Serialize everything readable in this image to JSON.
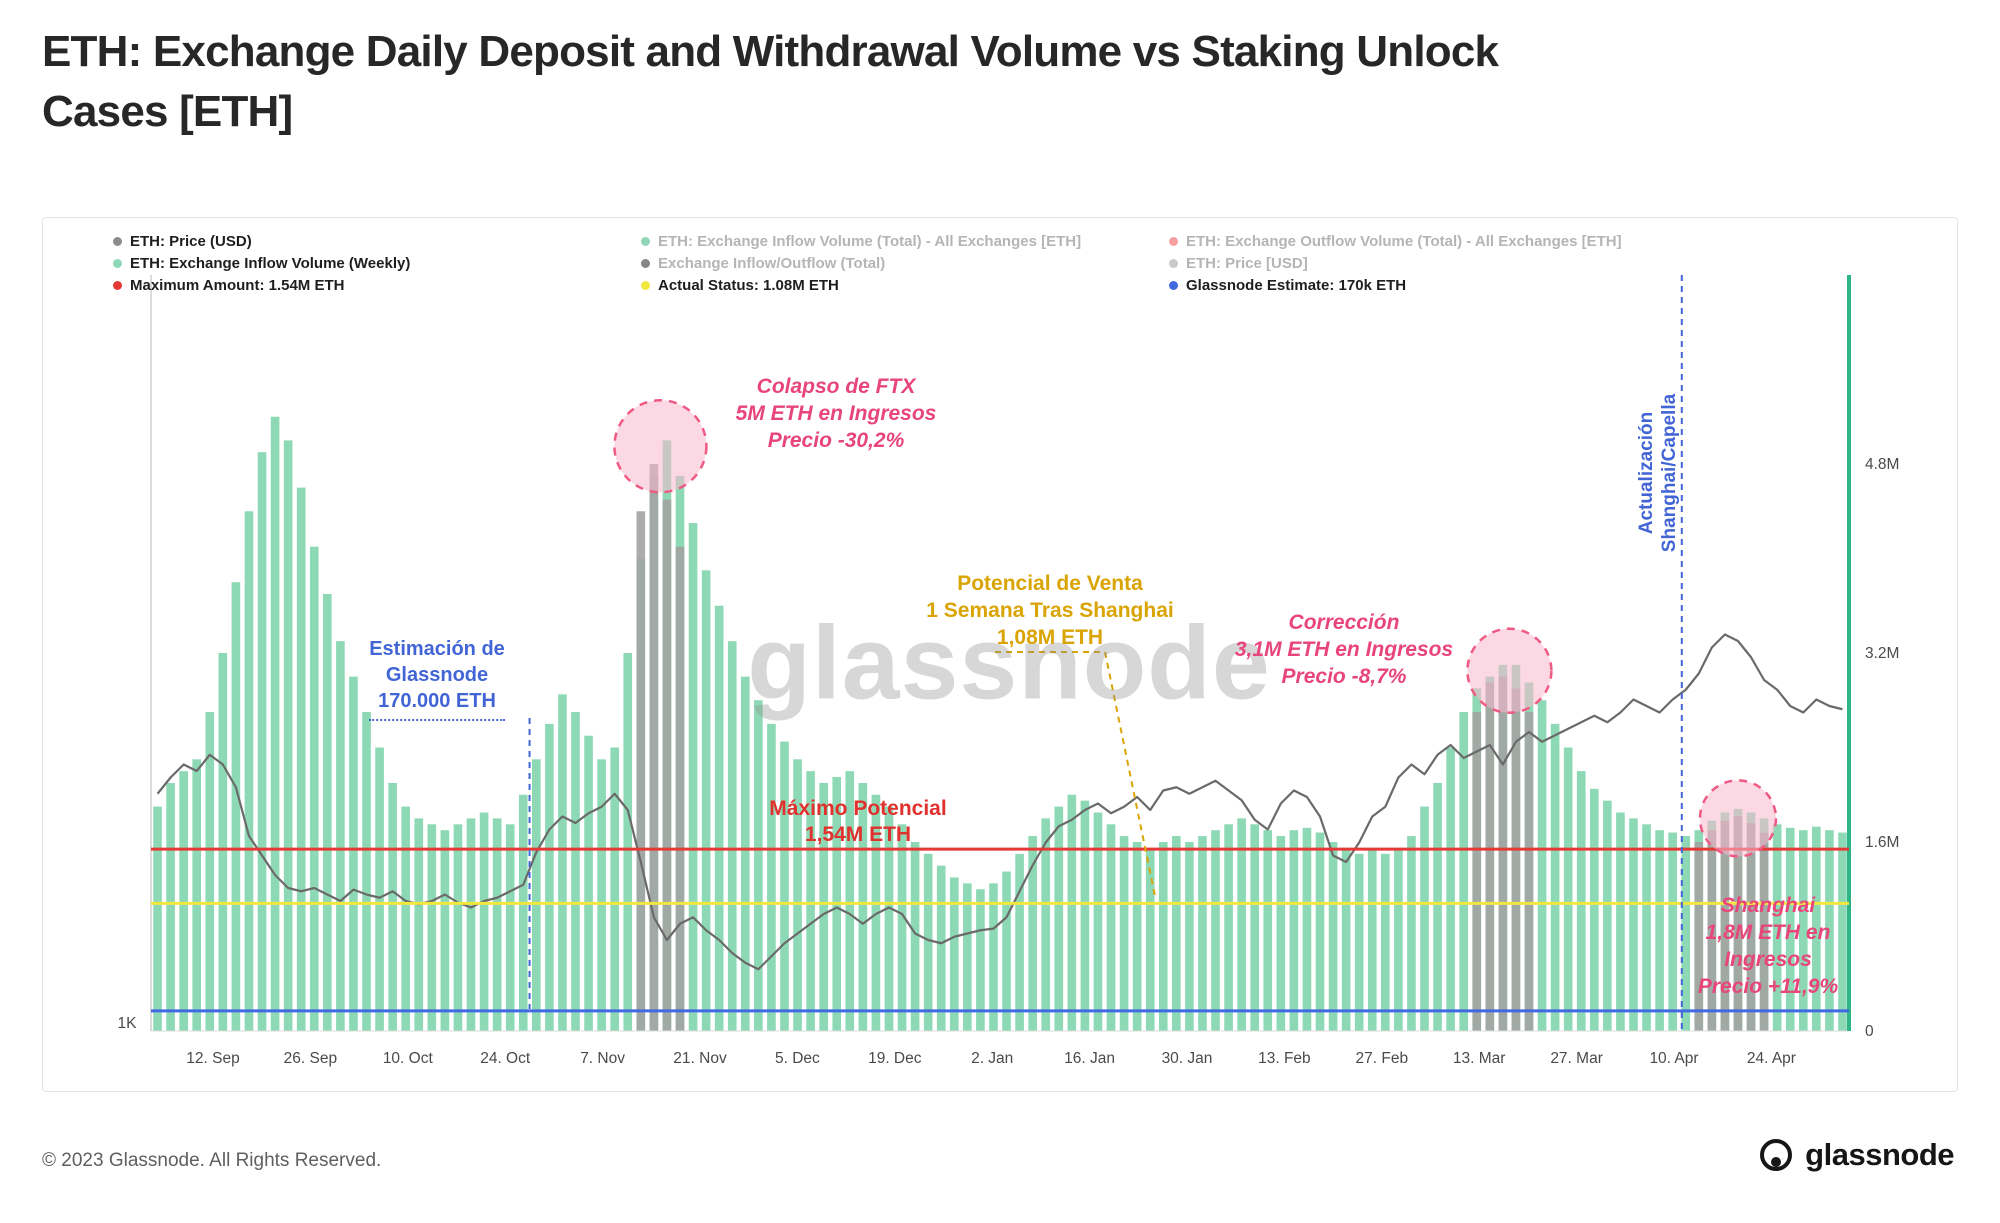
{
  "header": {
    "title_line1": "ETH: Exchange Daily Deposit and Withdrawal Volume vs Staking Unlock",
    "title_line2": "Cases [ETH]"
  },
  "watermark": "glassnode",
  "footer": {
    "copyright": "© 2023 Glassnode. All Rights Reserved.",
    "brand": "glassnode"
  },
  "colors": {
    "bar_green": "#8ed9b5",
    "bar_gray": "#a3a3a3",
    "price_gray": "#6a6a6a",
    "red_line": "#e53935",
    "yellow_line": "#f2e73e",
    "blue_line": "#4169e1",
    "teal_axis": "#2db487",
    "circle_fill": "#f7b8cd",
    "circle_stroke": "#ef5a82",
    "annotation_pink": "#e8457a",
    "annotation_blue": "#4265d6",
    "annotation_gold": "#d9a404",
    "annotation_red": "#e0312e"
  },
  "legend": {
    "rows": [
      [
        {
          "label": "ETH: Price (USD)",
          "color": "#8c8c8c",
          "active": true
        },
        {
          "label": "ETH: Exchange Inflow Volume (Total) - All Exchanges [ETH]",
          "color": "#35b57c",
          "active": false
        },
        {
          "label": "ETH: Exchange Outflow Volume (Total) - All Exchanges [ETH]",
          "color": "#ef5350",
          "active": false
        }
      ],
      [
        {
          "label": "ETH: Exchange Inflow Volume (Weekly)",
          "color": "#8ed9b5",
          "active": true
        },
        {
          "label": "Exchange Inflow/Outflow (Total)",
          "color": "#222222",
          "active": false
        },
        {
          "label": "ETH: Price [USD]",
          "color": "#9e9e9e",
          "active": false
        }
      ],
      [
        {
          "label": "Maximum Amount: 1.54M ETH",
          "color": "#e53935",
          "active": true
        },
        {
          "label": "Actual Status: 1.08M ETH",
          "color": "#f2e73e",
          "active": true
        },
        {
          "label": "Glassnode Estimate: 170k ETH",
          "color": "#4169e1",
          "active": true
        }
      ]
    ]
  },
  "annotations": {
    "ftx": [
      "Colapso de FTX",
      "5M ETH en Ingresos",
      "Precio -30,2%"
    ],
    "estimacion": [
      "Estimación de",
      "Glassnode",
      "170.000 ETH"
    ],
    "potencial": [
      "Potencial de Venta",
      "1 Semana Tras Shanghai",
      "1,08M ETH"
    ],
    "maximo": [
      "Máximo Potencial",
      "1,54M ETH"
    ],
    "correccion": [
      "Corrección",
      "3,1M ETH en Ingresos",
      "Precio -8,7%"
    ],
    "shanghai": [
      "Shanghai",
      "1,8M ETH en",
      "Ingresos",
      "Precio +11,9%"
    ],
    "actualizacion": [
      "Actualización",
      "Shanghai/Capella"
    ]
  },
  "chart_data": {
    "type": "mixed (bar + line)",
    "title": "ETH: Exchange Daily Deposit and Withdrawal Volume vs Staking Unlock Cases [ETH]",
    "x_tick_labels": [
      "12. Sep",
      "26. Sep",
      "10. Oct",
      "24. Oct",
      "7. Nov",
      "21. Nov",
      "5. Dec",
      "19. Dec",
      "2. Jan",
      "16. Jan",
      "30. Jan",
      "13. Feb",
      "27. Feb",
      "13. Mar",
      "27. Mar",
      "10. Apr",
      "24. Apr"
    ],
    "y_left_label": "1K",
    "y_right_ticks": [
      {
        "value": 4.8,
        "label": "4.8M"
      },
      {
        "value": 3.2,
        "label": "3.2M"
      },
      {
        "value": 1.6,
        "label": "1.6M"
      },
      {
        "value": 0,
        "label": "0"
      }
    ],
    "volume_axis": {
      "unit": "M ETH",
      "min": 0,
      "max_visible": 6.4
    },
    "series": [
      {
        "name": "ETH: Exchange Inflow Volume (Weekly)",
        "type": "bar",
        "unit": "M ETH",
        "color": "#8ed9b5",
        "values": [
          1.9,
          2.1,
          2.2,
          2.3,
          2.7,
          3.2,
          3.8,
          4.4,
          4.9,
          5.2,
          5.0,
          4.6,
          4.1,
          3.7,
          3.3,
          3.0,
          2.7,
          2.4,
          2.1,
          1.9,
          1.8,
          1.75,
          1.7,
          1.75,
          1.8,
          1.85,
          1.8,
          1.75,
          2.0,
          2.3,
          2.6,
          2.85,
          2.7,
          2.5,
          2.3,
          2.4,
          3.2,
          4.0,
          4.7,
          5.0,
          4.7,
          4.3,
          3.9,
          3.6,
          3.3,
          3.0,
          2.8,
          2.6,
          2.45,
          2.3,
          2.2,
          2.1,
          2.15,
          2.2,
          2.1,
          2.0,
          1.9,
          1.75,
          1.6,
          1.5,
          1.4,
          1.3,
          1.25,
          1.2,
          1.25,
          1.35,
          1.5,
          1.65,
          1.8,
          1.9,
          2.0,
          1.95,
          1.85,
          1.75,
          1.65,
          1.6,
          1.55,
          1.6,
          1.65,
          1.6,
          1.65,
          1.7,
          1.75,
          1.8,
          1.75,
          1.7,
          1.65,
          1.7,
          1.72,
          1.68,
          1.6,
          1.55,
          1.5,
          1.55,
          1.5,
          1.55,
          1.65,
          1.9,
          2.1,
          2.4,
          2.7,
          2.9,
          3.0,
          3.1,
          3.1,
          2.95,
          2.8,
          2.6,
          2.4,
          2.2,
          2.05,
          1.95,
          1.85,
          1.8,
          1.75,
          1.7,
          1.68,
          1.65,
          1.7,
          1.78,
          1.85,
          1.88,
          1.85,
          1.8,
          1.75,
          1.72,
          1.7,
          1.73,
          1.7,
          1.68
        ]
      },
      {
        "name": "ETH: Price (USD)",
        "type": "line",
        "unit": "USD",
        "color": "#6a6a6a",
        "domain": [
          900,
          2300
        ],
        "values": [
          1630,
          1680,
          1720,
          1700,
          1750,
          1720,
          1650,
          1500,
          1440,
          1380,
          1340,
          1330,
          1340,
          1320,
          1300,
          1335,
          1320,
          1310,
          1330,
          1300,
          1290,
          1300,
          1320,
          1295,
          1280,
          1300,
          1310,
          1330,
          1350,
          1450,
          1520,
          1560,
          1540,
          1570,
          1590,
          1630,
          1580,
          1420,
          1250,
          1180,
          1230,
          1250,
          1210,
          1180,
          1140,
          1110,
          1090,
          1130,
          1170,
          1200,
          1230,
          1260,
          1280,
          1260,
          1230,
          1260,
          1280,
          1260,
          1200,
          1180,
          1170,
          1190,
          1200,
          1210,
          1215,
          1250,
          1330,
          1410,
          1480,
          1530,
          1550,
          1580,
          1600,
          1570,
          1590,
          1620,
          1580,
          1640,
          1650,
          1630,
          1650,
          1670,
          1640,
          1610,
          1550,
          1520,
          1600,
          1640,
          1620,
          1560,
          1440,
          1420,
          1480,
          1560,
          1590,
          1680,
          1720,
          1690,
          1750,
          1780,
          1740,
          1760,
          1780,
          1720,
          1790,
          1820,
          1790,
          1810,
          1830,
          1850,
          1870,
          1850,
          1880,
          1920,
          1900,
          1880,
          1920,
          1950,
          2000,
          2080,
          2120,
          2100,
          2050,
          1980,
          1950,
          1900,
          1880,
          1920,
          1900,
          1890
        ]
      }
    ],
    "overlays": [
      {
        "name": "gray inflow highlight (FTX)",
        "start": 37,
        "color": "#a3a3a3",
        "values": [
          4.4,
          4.8,
          4.5,
          4.1
        ]
      },
      {
        "name": "gray inflow highlight (Correction)",
        "start": 101,
        "color": "#a3a3a3",
        "values": [
          2.7,
          2.95,
          3.0,
          2.9,
          2.7
        ]
      },
      {
        "name": "gray inflow highlight (Shanghai)",
        "start": 118,
        "color": "#a3a3a3",
        "values": [
          1.6,
          1.7,
          1.78,
          1.82,
          1.76,
          1.68
        ]
      }
    ],
    "reference_lines": [
      {
        "name": "Maximum Amount",
        "label": "1.54M ETH",
        "value": 1.54,
        "color": "#e53935"
      },
      {
        "name": "Actual Status",
        "label": "1.08M ETH",
        "value": 1.08,
        "color": "#f2e73e"
      },
      {
        "name": "Glassnode Estimate",
        "label": "170k ETH",
        "value": 0.17,
        "color": "#4169e1"
      }
    ],
    "event_lines": [
      {
        "name": "glassnode-estimate-marker",
        "at_tick": 3.25,
        "full": false,
        "color": "#4265d6"
      },
      {
        "name": "shanghai-capella-update",
        "at_tick": 15.08,
        "full": true,
        "color": "#4265d6"
      }
    ],
    "highlight_circles": [
      {
        "name": "ftx-collapse",
        "at_index": 38.5,
        "at_value": 4.95,
        "r": 46
      },
      {
        "name": "correction",
        "at_index": 103.5,
        "at_value": 3.05,
        "r": 42
      },
      {
        "name": "shanghai",
        "at_index": 121.0,
        "at_value": 1.8,
        "r": 38
      }
    ],
    "legend_position": "top",
    "grid": false
  }
}
